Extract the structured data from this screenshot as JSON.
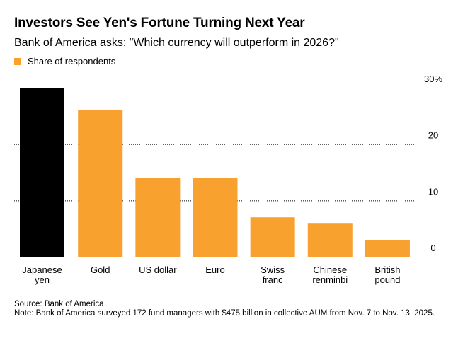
{
  "header": {
    "title": "Investors See Yen's Fortune Turning Next Year",
    "subtitle": "Bank of America asks: \"Which currency will outperform in 2026?\"",
    "legend_label": "Share of respondents"
  },
  "footer": {
    "source": "Source: Bank of America",
    "note": "Note: Bank of America surveyed 172 fund managers with $475 billion in collective AUM from Nov. 7 to Nov. 13, 2025."
  },
  "colors": {
    "bar": "#F9A12E",
    "highlight": "#000000",
    "grid": "#000000",
    "axis": "#000000"
  },
  "chart_data": {
    "type": "bar",
    "title": "Investors See Yen's Fortune Turning Next Year",
    "subtitle": "Bank of America asks: \"Which currency will outperform in 2026?\"",
    "categories": [
      [
        "Japanese",
        "yen"
      ],
      [
        "Gold"
      ],
      [
        "US dollar"
      ],
      [
        "Euro"
      ],
      [
        "Swiss",
        "franc"
      ],
      [
        "Chinese",
        "renminbi"
      ],
      [
        "British",
        "pound"
      ]
    ],
    "series": [
      {
        "name": "Share of respondents",
        "values": [
          30,
          26,
          14,
          14,
          7,
          6,
          3
        ]
      }
    ],
    "highlight_index": 0,
    "ylim": [
      0,
      30
    ],
    "yticks": [
      0,
      10,
      20,
      30
    ],
    "ytick_labels": [
      "0",
      "10",
      "20",
      "30%"
    ],
    "y_axis_side": "right",
    "grid": true,
    "xlabel": "",
    "ylabel": ""
  }
}
